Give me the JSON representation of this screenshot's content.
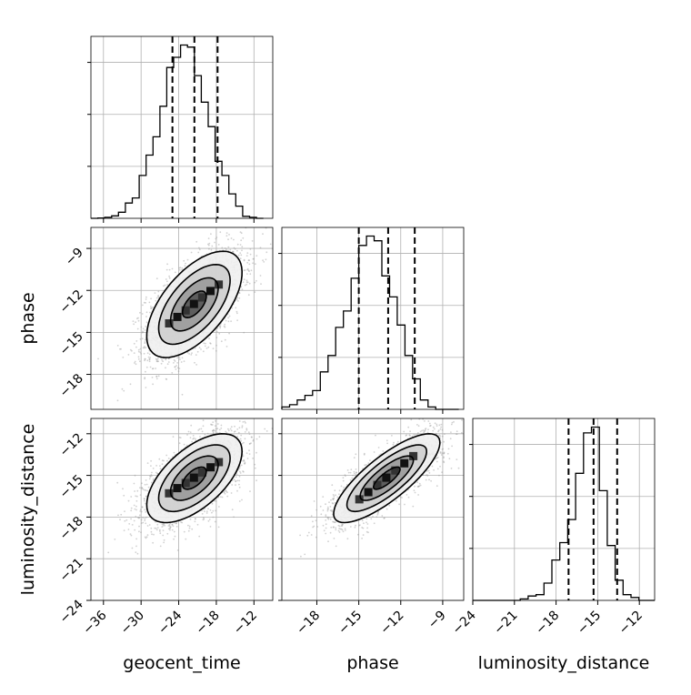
{
  "chart_data": {
    "type": "corner",
    "parameters": [
      "geocent_time",
      "phase",
      "luminosity_distance"
    ],
    "axis_labels": {
      "x": [
        "geocent_time",
        "phase",
        "luminosity_distance"
      ],
      "y_row1": "phase",
      "y_row2": "luminosity_distance"
    },
    "ranges": {
      "geocent_time": [
        -38,
        -9
      ],
      "phase": [
        -20.5,
        -7.5
      ],
      "luminosity_distance": [
        -24,
        -10.9
      ]
    },
    "ticks": {
      "geocent_time": [
        "-36",
        "-30",
        "-24",
        "-18",
        "-12"
      ],
      "phase_x": [
        "-18",
        "-15",
        "-12",
        "-9"
      ],
      "phase_y": [
        "-9",
        "-12",
        "-15",
        "-18"
      ],
      "luminosity_distance_x": [
        "-24",
        "-21",
        "-18",
        "-15",
        "-12"
      ],
      "luminosity_distance_y": [
        "-12",
        "-15",
        "-18",
        "-21",
        "-24"
      ]
    },
    "quantiles": {
      "geocent_time": [
        -25.0,
        -21.5,
        -17.8
      ],
      "phase": [
        -15.0,
        -12.9,
        -11.0
      ],
      "luminosity_distance": [
        -17.1,
        -15.3,
        -13.6
      ]
    },
    "histograms": {
      "geocent_time": {
        "bin_start": -38,
        "bin_width": 1.1,
        "counts": [
          0,
          0.2,
          0.5,
          1.2,
          3,
          7.5,
          10,
          21,
          31,
          40,
          55,
          74,
          79,
          85,
          84,
          70,
          57,
          45,
          28,
          21,
          12,
          6,
          1,
          0.5,
          0
        ]
      },
      "phase": {
        "bin_start": -20.5,
        "bin_width": 0.55,
        "counts": [
          1,
          2,
          4,
          6,
          8,
          16,
          23,
          35,
          42,
          56,
          70,
          74,
          72,
          57,
          48,
          36,
          23,
          13,
          4,
          1,
          0,
          0,
          0
        ]
      },
      "luminosity_distance": {
        "bin_start": -24,
        "bin_width": 0.57,
        "counts": [
          0,
          0,
          0,
          0,
          0,
          0,
          0.5,
          1.5,
          2,
          6,
          14,
          20,
          28,
          44,
          58,
          60,
          38,
          19,
          7,
          2,
          1,
          0,
          0
        ]
      }
    },
    "joint": {
      "geocent_time_vs_phase": {
        "mean": [
          -21.5,
          -13.0
        ],
        "sd": [
          3.8,
          1.9
        ],
        "rho": 0.6
      },
      "geocent_time_vs_luminosity_distance": {
        "mean": [
          -21.5,
          -15.2
        ],
        "sd": [
          3.8,
          1.6
        ],
        "rho": 0.6
      },
      "phase_vs_luminosity_distance": {
        "mean": [
          -13.0,
          -15.2
        ],
        "sd": [
          1.9,
          1.6
        ],
        "rho": 0.8
      }
    },
    "contour_levels_sigma": [
      0.5,
      1.0,
      1.5,
      2.0
    ],
    "grid": true
  }
}
